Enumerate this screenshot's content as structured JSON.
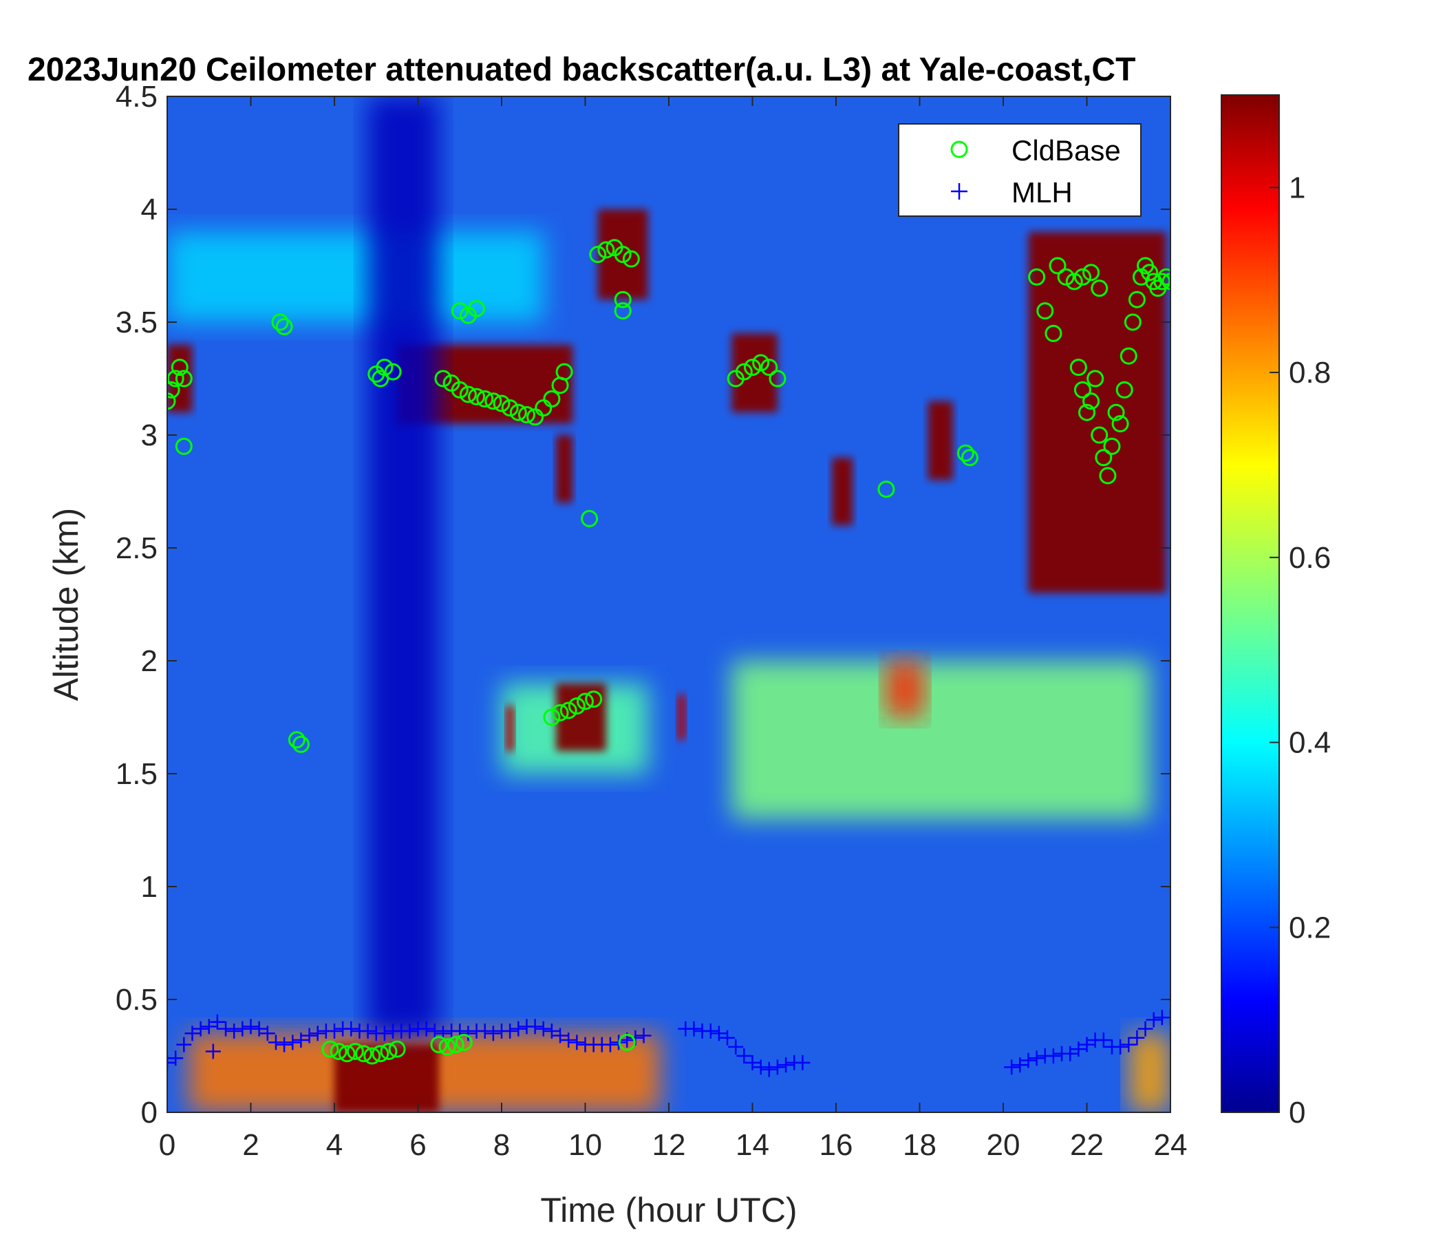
{
  "chart_data": {
    "type": "heatmap",
    "title": "2023Jun20 Ceilometer attenuated backscatter(a.u. L3) at Yale-coast,CT",
    "xlabel": "Time (hour UTC)",
    "ylabel": "Altitude (km)",
    "xlim": [
      0,
      24
    ],
    "ylim": [
      0,
      4.5
    ],
    "clim": [
      0,
      1.1
    ],
    "x_ticks": [
      0,
      2,
      4,
      6,
      8,
      10,
      12,
      14,
      16,
      18,
      20,
      22,
      24
    ],
    "y_ticks": [
      0,
      0.5,
      1,
      1.5,
      2,
      2.5,
      3,
      3.5,
      4,
      4.5
    ],
    "x_tick_labels": [
      "0",
      "2",
      "4",
      "6",
      "8",
      "10",
      "12",
      "14",
      "16",
      "18",
      "20",
      "22",
      "24"
    ],
    "y_tick_labels": [
      "0",
      "0.5",
      "1",
      "1.5",
      "2",
      "2.5",
      "3",
      "3.5",
      "4",
      "4.5"
    ],
    "colorbar": {
      "colormap": "jet",
      "ticks": [
        0,
        0.2,
        0.4,
        0.6,
        0.8,
        1
      ],
      "tick_labels": [
        "0",
        "0.2",
        "0.4",
        "0.6",
        "0.8",
        "1"
      ]
    },
    "legend": {
      "placement": "top-right",
      "entries": [
        {
          "label": "CldBase",
          "marker": "circle",
          "color": "#00ff00"
        },
        {
          "label": "MLH",
          "marker": "plus",
          "color": "#0000ff"
        }
      ]
    },
    "series": [
      {
        "name": "CldBase",
        "marker": "circle",
        "color": "#00ff00",
        "points": [
          [
            0.0,
            3.15
          ],
          [
            0.1,
            3.2
          ],
          [
            0.2,
            3.25
          ],
          [
            0.3,
            3.3
          ],
          [
            0.4,
            3.25
          ],
          [
            0.4,
            2.95
          ],
          [
            2.7,
            3.5
          ],
          [
            2.8,
            3.48
          ],
          [
            3.1,
            1.65
          ],
          [
            3.2,
            1.63
          ],
          [
            3.9,
            0.28
          ],
          [
            4.1,
            0.27
          ],
          [
            4.3,
            0.26
          ],
          [
            4.5,
            0.27
          ],
          [
            4.7,
            0.26
          ],
          [
            4.9,
            0.25
          ],
          [
            5.1,
            0.26
          ],
          [
            5.3,
            0.27
          ],
          [
            5.5,
            0.28
          ],
          [
            5.0,
            3.27
          ],
          [
            5.1,
            3.25
          ],
          [
            5.2,
            3.3
          ],
          [
            5.4,
            3.28
          ],
          [
            6.5,
            0.3
          ],
          [
            6.7,
            0.29
          ],
          [
            6.9,
            0.3
          ],
          [
            7.1,
            0.31
          ],
          [
            6.6,
            3.25
          ],
          [
            6.8,
            3.23
          ],
          [
            7.0,
            3.2
          ],
          [
            7.2,
            3.18
          ],
          [
            7.4,
            3.17
          ],
          [
            7.6,
            3.16
          ],
          [
            7.8,
            3.15
          ],
          [
            8.0,
            3.14
          ],
          [
            8.2,
            3.12
          ],
          [
            8.4,
            3.1
          ],
          [
            8.6,
            3.09
          ],
          [
            8.8,
            3.08
          ],
          [
            9.0,
            3.12
          ],
          [
            9.2,
            3.16
          ],
          [
            9.4,
            3.22
          ],
          [
            9.5,
            3.28
          ],
          [
            7.0,
            3.55
          ],
          [
            7.2,
            3.53
          ],
          [
            7.4,
            3.56
          ],
          [
            9.2,
            1.75
          ],
          [
            9.4,
            1.77
          ],
          [
            9.6,
            1.78
          ],
          [
            9.8,
            1.8
          ],
          [
            10.0,
            1.82
          ],
          [
            10.2,
            1.83
          ],
          [
            10.1,
            2.63
          ],
          [
            10.3,
            3.8
          ],
          [
            10.5,
            3.82
          ],
          [
            10.7,
            3.83
          ],
          [
            10.9,
            3.8
          ],
          [
            11.1,
            3.78
          ],
          [
            10.9,
            3.6
          ],
          [
            10.9,
            3.55
          ],
          [
            11.0,
            0.31
          ],
          [
            13.6,
            3.25
          ],
          [
            13.8,
            3.28
          ],
          [
            14.0,
            3.3
          ],
          [
            14.2,
            3.32
          ],
          [
            14.4,
            3.3
          ],
          [
            14.6,
            3.25
          ],
          [
            17.2,
            2.76
          ],
          [
            19.1,
            2.92
          ],
          [
            19.2,
            2.9
          ],
          [
            20.8,
            3.7
          ],
          [
            21.0,
            3.55
          ],
          [
            21.2,
            3.45
          ],
          [
            21.3,
            3.75
          ],
          [
            21.5,
            3.7
          ],
          [
            21.7,
            3.68
          ],
          [
            21.9,
            3.7
          ],
          [
            22.1,
            3.72
          ],
          [
            22.3,
            3.65
          ],
          [
            21.8,
            3.3
          ],
          [
            21.9,
            3.2
          ],
          [
            22.0,
            3.1
          ],
          [
            22.1,
            3.15
          ],
          [
            22.2,
            3.25
          ],
          [
            22.3,
            3.0
          ],
          [
            22.4,
            2.9
          ],
          [
            22.5,
            2.82
          ],
          [
            22.6,
            2.95
          ],
          [
            22.7,
            3.1
          ],
          [
            22.8,
            3.05
          ],
          [
            22.9,
            3.2
          ],
          [
            23.0,
            3.35
          ],
          [
            23.1,
            3.5
          ],
          [
            23.2,
            3.6
          ],
          [
            23.3,
            3.7
          ],
          [
            23.4,
            3.75
          ],
          [
            23.5,
            3.72
          ],
          [
            23.6,
            3.68
          ],
          [
            23.7,
            3.65
          ],
          [
            23.8,
            3.68
          ],
          [
            23.9,
            3.7
          ],
          [
            24.0,
            3.68
          ]
        ]
      },
      {
        "name": "MLH",
        "marker": "plus",
        "color": "#0000ff",
        "points": [
          [
            0.0,
            0.22
          ],
          [
            0.2,
            0.24
          ],
          [
            0.4,
            0.3
          ],
          [
            0.6,
            0.35
          ],
          [
            0.8,
            0.37
          ],
          [
            1.0,
            0.38
          ],
          [
            1.1,
            0.27
          ],
          [
            1.2,
            0.4
          ],
          [
            1.4,
            0.37
          ],
          [
            1.6,
            0.36
          ],
          [
            1.8,
            0.37
          ],
          [
            2.0,
            0.38
          ],
          [
            2.2,
            0.37
          ],
          [
            2.4,
            0.35
          ],
          [
            2.6,
            0.31
          ],
          [
            2.8,
            0.3
          ],
          [
            3.0,
            0.31
          ],
          [
            3.2,
            0.32
          ],
          [
            3.4,
            0.34
          ],
          [
            3.6,
            0.35
          ],
          [
            3.8,
            0.36
          ],
          [
            4.0,
            0.36
          ],
          [
            4.2,
            0.37
          ],
          [
            4.4,
            0.37
          ],
          [
            4.6,
            0.36
          ],
          [
            4.8,
            0.36
          ],
          [
            5.0,
            0.35
          ],
          [
            5.2,
            0.35
          ],
          [
            5.4,
            0.36
          ],
          [
            5.6,
            0.36
          ],
          [
            5.8,
            0.36
          ],
          [
            6.0,
            0.37
          ],
          [
            6.2,
            0.37
          ],
          [
            6.4,
            0.36
          ],
          [
            6.6,
            0.35
          ],
          [
            6.8,
            0.36
          ],
          [
            7.0,
            0.36
          ],
          [
            7.2,
            0.35
          ],
          [
            7.4,
            0.36
          ],
          [
            7.6,
            0.36
          ],
          [
            7.8,
            0.35
          ],
          [
            8.0,
            0.36
          ],
          [
            8.2,
            0.36
          ],
          [
            8.4,
            0.37
          ],
          [
            8.6,
            0.38
          ],
          [
            8.8,
            0.38
          ],
          [
            9.0,
            0.37
          ],
          [
            9.2,
            0.36
          ],
          [
            9.4,
            0.34
          ],
          [
            9.6,
            0.32
          ],
          [
            9.8,
            0.31
          ],
          [
            10.0,
            0.3
          ],
          [
            10.2,
            0.3
          ],
          [
            10.4,
            0.3
          ],
          [
            10.6,
            0.3
          ],
          [
            10.8,
            0.31
          ],
          [
            11.0,
            0.32
          ],
          [
            11.2,
            0.33
          ],
          [
            11.4,
            0.34
          ],
          [
            12.4,
            0.37
          ],
          [
            12.6,
            0.37
          ],
          [
            12.8,
            0.36
          ],
          [
            13.0,
            0.36
          ],
          [
            13.2,
            0.35
          ],
          [
            13.4,
            0.33
          ],
          [
            13.6,
            0.29
          ],
          [
            13.8,
            0.25
          ],
          [
            14.0,
            0.22
          ],
          [
            14.2,
            0.2
          ],
          [
            14.4,
            0.19
          ],
          [
            14.6,
            0.2
          ],
          [
            14.8,
            0.21
          ],
          [
            15.0,
            0.22
          ],
          [
            15.2,
            0.22
          ],
          [
            20.2,
            0.2
          ],
          [
            20.4,
            0.21
          ],
          [
            20.6,
            0.23
          ],
          [
            20.8,
            0.24
          ],
          [
            21.0,
            0.25
          ],
          [
            21.2,
            0.25
          ],
          [
            21.4,
            0.26
          ],
          [
            21.6,
            0.26
          ],
          [
            21.8,
            0.28
          ],
          [
            22.0,
            0.3
          ],
          [
            22.2,
            0.32
          ],
          [
            22.4,
            0.32
          ],
          [
            22.6,
            0.29
          ],
          [
            22.8,
            0.29
          ],
          [
            23.0,
            0.3
          ],
          [
            23.2,
            0.33
          ],
          [
            23.4,
            0.37
          ],
          [
            23.6,
            0.41
          ],
          [
            23.8,
            0.42
          ],
          [
            24.0,
            0.42
          ]
        ]
      }
    ],
    "features": [
      {
        "name": "surface aerosol layer",
        "x": [
          0.5,
          11.8
        ],
        "y": [
          0.0,
          0.35
        ],
        "value": 0.85
      },
      {
        "name": "surface aerosol layer (dense)",
        "x": [
          4.0,
          6.5
        ],
        "y": [
          0.0,
          0.3
        ],
        "value": 1.1
      },
      {
        "name": "surface aerosol layer (afternoon)",
        "x": [
          23.0,
          24.0
        ],
        "y": [
          0.0,
          0.35
        ],
        "value": 0.8
      },
      {
        "name": "daytime elevated aerosol",
        "x": [
          13.5,
          23.5
        ],
        "y": [
          1.3,
          2.0
        ],
        "value": 0.55
      },
      {
        "name": "elevated aerosol patch",
        "x": [
          17.2,
          18.1
        ],
        "y": [
          1.75,
          2.0
        ],
        "value": 0.95
      },
      {
        "name": "elevated aerosol",
        "x": [
          8.0,
          11.5
        ],
        "y": [
          1.5,
          1.9
        ],
        "value": 0.5
      },
      {
        "name": "residual layer",
        "x": [
          0.0,
          9.0
        ],
        "y": [
          3.5,
          3.9
        ],
        "value": 0.35
      },
      {
        "name": "cloud 0-0.6h",
        "x": [
          0.0,
          0.6
        ],
        "y": [
          3.1,
          3.4
        ],
        "value": 1.1
      },
      {
        "name": "cloud 5.5-9.7h",
        "x": [
          5.5,
          9.7
        ],
        "y": [
          3.05,
          3.4
        ],
        "value": 1.1
      },
      {
        "name": "cloud 9.5h",
        "x": [
          9.3,
          9.7
        ],
        "y": [
          2.7,
          3.0
        ],
        "value": 1.1
      },
      {
        "name": "cloud 10.3-11.5h",
        "x": [
          10.3,
          11.5
        ],
        "y": [
          3.6,
          4.0
        ],
        "value": 1.1
      },
      {
        "name": "cloud 9.3-10.5h",
        "x": [
          9.3,
          10.5
        ],
        "y": [
          1.6,
          1.9
        ],
        "value": 1.1
      },
      {
        "name": "cloud 8.2h",
        "x": [
          8.1,
          8.3
        ],
        "y": [
          1.6,
          1.8
        ],
        "value": 1.05
      },
      {
        "name": "cloud 12.3h",
        "x": [
          12.2,
          12.4
        ],
        "y": [
          1.65,
          1.85
        ],
        "value": 1.05
      },
      {
        "name": "cloud 13.5-14.6h",
        "x": [
          13.5,
          14.6
        ],
        "y": [
          3.1,
          3.45
        ],
        "value": 1.1
      },
      {
        "name": "cloud 16.1h",
        "x": [
          15.9,
          16.4
        ],
        "y": [
          2.6,
          2.9
        ],
        "value": 1.1
      },
      {
        "name": "cloud 18.5h",
        "x": [
          18.2,
          18.8
        ],
        "y": [
          2.8,
          3.15
        ],
        "value": 1.1
      },
      {
        "name": "cloud 20.5-23.9h",
        "x": [
          20.6,
          23.9
        ],
        "y": [
          2.3,
          3.9
        ],
        "value": 1.1
      },
      {
        "name": "low-signal column",
        "x": [
          4.8,
          6.5
        ],
        "y": [
          0.35,
          4.5
        ],
        "value": 0.05
      }
    ]
  }
}
